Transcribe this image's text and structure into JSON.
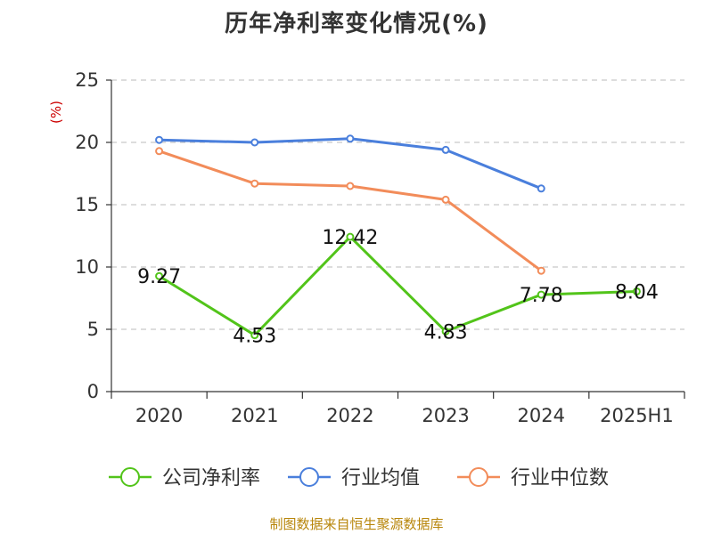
{
  "title": "历年净利率变化情况(%)",
  "source": "制图数据来自恒生聚源数据库",
  "chart_data": {
    "type": "line",
    "title": "历年净利率变化情况(%)",
    "ylabel": "(%)",
    "xlabel": "",
    "categories": [
      "2020",
      "2021",
      "2022",
      "2023",
      "2024",
      "2025H1"
    ],
    "ylim": [
      0,
      25
    ],
    "yticks": [
      0,
      5,
      10,
      15,
      20,
      25
    ],
    "grid": true,
    "legend_position": "bottom",
    "series": [
      {
        "name": "公司净利率",
        "color": "#52c41a",
        "values": [
          9.27,
          4.53,
          12.42,
          4.83,
          7.78,
          8.04
        ],
        "labels": [
          "9.27",
          "4.53",
          "12.42",
          "4.83",
          "7.78",
          "8.04"
        ]
      },
      {
        "name": "行业均值",
        "color": "#4a7fdc",
        "values": [
          20.2,
          20.0,
          20.3,
          19.4,
          16.3,
          null
        ]
      },
      {
        "name": "行业中位数",
        "color": "#f28c5a",
        "values": [
          19.3,
          16.7,
          16.5,
          15.4,
          9.7,
          null
        ]
      }
    ]
  }
}
